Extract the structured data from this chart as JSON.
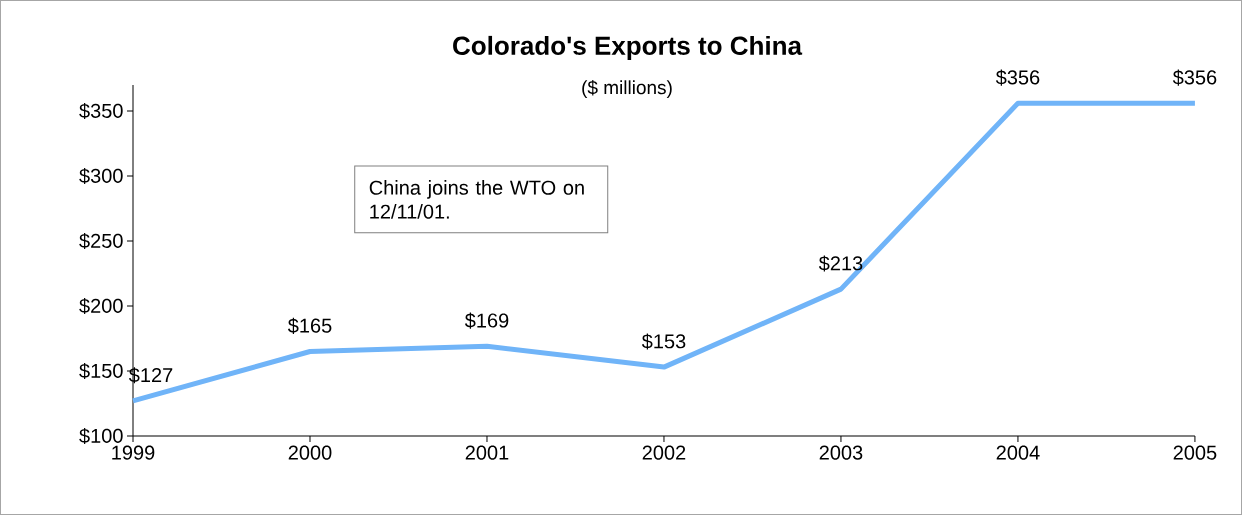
{
  "chart_data": {
    "type": "line",
    "title": "Colorado's Exports to China",
    "subtitle": "($ millions)",
    "categories": [
      "1999",
      "2000",
      "2001",
      "2002",
      "2003",
      "2004",
      "2005"
    ],
    "values": [
      127,
      165,
      169,
      153,
      213,
      356,
      356
    ],
    "color": "#70b4f8",
    "ylim": [
      100,
      370
    ],
    "yticks": [
      {
        "value": 100,
        "label": "$100"
      },
      {
        "value": 150,
        "label": "$150"
      },
      {
        "value": 200,
        "label": "$200"
      },
      {
        "value": 250,
        "label": "$250"
      },
      {
        "value": 300,
        "label": "$300"
      },
      {
        "value": 350,
        "label": "$350"
      }
    ],
    "value_labels": [
      "$127",
      "$165",
      "$169",
      "$153",
      "$213",
      "$356",
      "$356"
    ],
    "annotations": [
      "China joins the WTO on 12/11/01."
    ]
  }
}
